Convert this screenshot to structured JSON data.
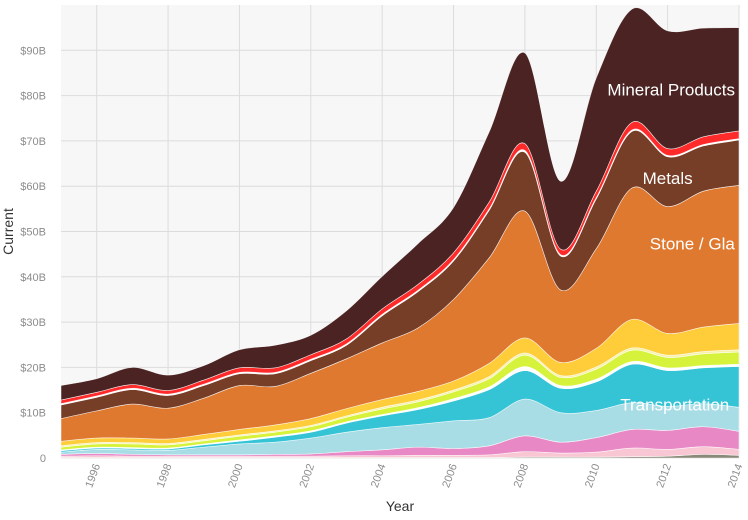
{
  "chart_data": {
    "type": "area",
    "stacked": true,
    "xlabel": "Year",
    "ylabel": "Current",
    "x": [
      1995,
      1996,
      1997,
      1998,
      1999,
      2000,
      2001,
      2002,
      2003,
      2004,
      2005,
      2006,
      2007,
      2008,
      2009,
      2010,
      2011,
      2012,
      2013,
      2014
    ],
    "xlim": [
      1995,
      2014
    ],
    "ylim": [
      0,
      100
    ],
    "y_unit": "billions USD",
    "xticks": [
      {
        "value": 1996,
        "label": "1996"
      },
      {
        "value": 1998,
        "label": "1998"
      },
      {
        "value": 2000,
        "label": "2000"
      },
      {
        "value": 2002,
        "label": "2002"
      },
      {
        "value": 2004,
        "label": "2004"
      },
      {
        "value": 2006,
        "label": "2006"
      },
      {
        "value": 2008,
        "label": "2008"
      },
      {
        "value": 2010,
        "label": "2010"
      },
      {
        "value": 2012,
        "label": "2012"
      },
      {
        "value": 2014,
        "label": "2014"
      }
    ],
    "yticks": [
      {
        "value": 0,
        "label": "0"
      },
      {
        "value": 10,
        "label": "$10B"
      },
      {
        "value": 20,
        "label": "$20B"
      },
      {
        "value": 30,
        "label": "$30B"
      },
      {
        "value": 40,
        "label": "$40B"
      },
      {
        "value": 50,
        "label": "$50B"
      },
      {
        "value": 60,
        "label": "$60B"
      },
      {
        "value": 70,
        "label": "$70B"
      },
      {
        "value": 80,
        "label": "$80B"
      },
      {
        "value": 90,
        "label": "$90B"
      }
    ],
    "grid": true,
    "background": "#f7f7f7",
    "series": [
      {
        "color": "#8a8a7a",
        "values": [
          0.1,
          0.1,
          0.1,
          0.1,
          0.1,
          0.1,
          0.1,
          0.1,
          0.1,
          0.1,
          0.1,
          0.1,
          0.1,
          0.2,
          0.2,
          0.2,
          0.3,
          0.4,
          0.8,
          0.6
        ]
      },
      {
        "color": "#f9c6d3",
        "values": [
          0.3,
          0.4,
          0.3,
          0.3,
          0.3,
          0.3,
          0.3,
          0.3,
          0.4,
          0.4,
          0.5,
          0.5,
          0.6,
          1.2,
          0.9,
          1.1,
          1.9,
          1.5,
          1.7,
          1.3
        ]
      },
      {
        "color": "#e889c6",
        "values": [
          0.4,
          0.5,
          0.4,
          0.3,
          0.3,
          0.3,
          0.4,
          0.5,
          0.9,
          1.3,
          1.8,
          1.5,
          2.0,
          3.5,
          2.4,
          3.2,
          4.1,
          4.2,
          4.4,
          4.0
        ]
      },
      {
        "color": "#a8dde6",
        "values": [
          0.5,
          0.9,
          1.0,
          1.0,
          1.7,
          2.4,
          2.7,
          3.5,
          4.3,
          4.9,
          5.0,
          6.1,
          6.2,
          8.1,
          6.5,
          6.0,
          5.9,
          5.3,
          5.1,
          5.3
        ]
      },
      {
        "color": "#35c4d6",
        "values": [
          0.3,
          0.3,
          0.3,
          0.3,
          0.5,
          0.6,
          1.1,
          1.3,
          2.0,
          2.6,
          3.3,
          4.4,
          6.2,
          6.3,
          5.4,
          6.3,
          8.5,
          7.9,
          7.9,
          9.0
        ]
      },
      {
        "color": "#ffffff",
        "values": [
          0.2,
          0.2,
          0.2,
          0.2,
          0.2,
          0.3,
          0.3,
          0.3,
          0.3,
          0.3,
          0.4,
          0.5,
          0.6,
          0.9,
          0.6,
          0.6,
          0.6,
          0.6,
          0.5,
          0.5
        ]
      },
      {
        "color": "#d6f23a",
        "values": [
          0.6,
          0.7,
          0.8,
          0.7,
          0.7,
          0.8,
          0.8,
          0.9,
          1.0,
          1.2,
          1.3,
          1.5,
          1.8,
          2.5,
          1.8,
          2.2,
          2.5,
          2.3,
          2.6,
          2.7
        ]
      },
      {
        "color": "#f7f2a8",
        "values": [
          0.3,
          0.3,
          0.3,
          0.3,
          0.3,
          0.3,
          0.3,
          0.3,
          0.3,
          0.4,
          0.4,
          0.4,
          0.5,
          0.5,
          0.4,
          0.5,
          0.5,
          0.5,
          0.5,
          0.5
        ]
      },
      {
        "color": "#ffcc3a",
        "values": [
          1.0,
          1.0,
          1.0,
          1.0,
          1.1,
          1.2,
          1.3,
          1.5,
          1.6,
          1.7,
          1.9,
          2.0,
          2.9,
          3.3,
          2.9,
          4.1,
          6.3,
          4.8,
          5.4,
          5.8
        ]
      },
      {
        "color": "#df7930",
        "values": [
          5.0,
          6.0,
          7.5,
          6.8,
          8.0,
          9.7,
          8.5,
          10.0,
          11.0,
          12.5,
          14.0,
          18.0,
          23.3,
          28.0,
          16.0,
          22.0,
          29.0,
          28.0,
          30.0,
          30.5
        ]
      },
      {
        "color": "#773e27",
        "values": [
          3.0,
          3.0,
          3.2,
          2.8,
          2.8,
          2.6,
          2.8,
          2.8,
          3.0,
          6.0,
          8.0,
          8.5,
          10.5,
          13.0,
          7.5,
          11.0,
          12.5,
          11.0,
          10.0,
          10.0
        ]
      },
      {
        "color": "#ffffff",
        "values": [
          0.3,
          0.3,
          0.3,
          0.3,
          0.3,
          0.3,
          0.3,
          0.3,
          0.3,
          0.3,
          0.3,
          0.3,
          0.3,
          0.4,
          0.3,
          0.3,
          0.3,
          0.3,
          0.3,
          0.3
        ]
      },
      {
        "color": "#ff2a2a",
        "values": [
          0.8,
          0.8,
          0.8,
          0.8,
          0.9,
          1.0,
          1.0,
          1.0,
          1.1,
          1.2,
          1.3,
          1.5,
          1.5,
          1.5,
          1.2,
          1.4,
          1.7,
          1.5,
          1.7,
          1.7
        ]
      },
      {
        "color": "#4b2323",
        "values": [
          3.2,
          3.0,
          3.8,
          3.4,
          3.2,
          4.0,
          5.0,
          4.3,
          6.2,
          7.2,
          9.0,
          10.0,
          15.5,
          20.0,
          15.0,
          25.0,
          25.0,
          26.0,
          24.0,
          22.8
        ]
      }
    ],
    "labels": [
      {
        "text": "Mineral Products",
        "x": 2012.1,
        "y": 80,
        "anchor": "middle"
      },
      {
        "text": "Metals",
        "x": 2012.0,
        "y": 60.5,
        "anchor": "middle"
      },
      {
        "text": "Stone / Gla",
        "x": 2011.5,
        "y": 46,
        "anchor": "start"
      },
      {
        "text": "Transportation",
        "x": 2012.2,
        "y": 10.5,
        "anchor": "middle"
      }
    ]
  }
}
